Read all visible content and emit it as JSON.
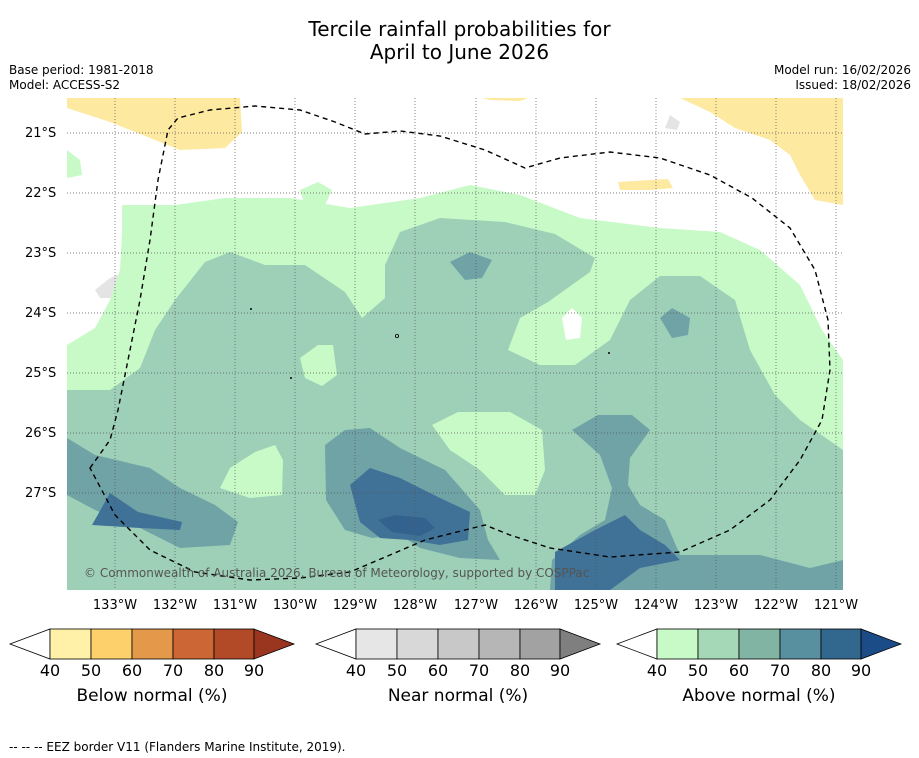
{
  "title_line1": "Tercile rainfall probabilities for",
  "title_line2": "April to June 2026",
  "base_period": "Base period: 1981-2018",
  "model": "Model: ACCESS-S2",
  "model_run": "Model run: 16/02/2026",
  "issued": "Issued: 18/02/2026",
  "lat_labels": [
    "21°S",
    "22°S",
    "23°S",
    "24°S",
    "25°S",
    "26°S",
    "27°S"
  ],
  "lon_labels": [
    "133°W",
    "132°W",
    "131°W",
    "130°W",
    "129°W",
    "128°W",
    "127°W",
    "126°W",
    "125°W",
    "124°W",
    "123°W",
    "122°W",
    "121°W"
  ],
  "copyright": "© Commonwealth of Australia 2026, Bureau of Meteorology, supported by COSPPac",
  "colorbars": [
    {
      "label": "Below normal (%)",
      "ticks": [
        "40",
        "50",
        "60",
        "70",
        "80",
        "90"
      ],
      "colors": [
        "#fff2a8",
        "#fdd06b",
        "#e3984a",
        "#cc6634",
        "#b24a28",
        "#9a3520"
      ]
    },
    {
      "label": "Near normal (%)",
      "ticks": [
        "40",
        "50",
        "60",
        "70",
        "80",
        "90"
      ],
      "colors": [
        "#e6e6e6",
        "#d8d8d8",
        "#c8c8c8",
        "#b6b6b6",
        "#a2a2a2",
        "#7f7f7f"
      ]
    },
    {
      "label": "Above normal (%)",
      "ticks": [
        "40",
        "50",
        "60",
        "70",
        "80",
        "90"
      ],
      "colors": [
        "#c8fac8",
        "#a4d8b6",
        "#82b4a4",
        "#5890a0",
        "#33688e",
        "#1c4c88"
      ]
    }
  ],
  "footer": "--  --  -- EEZ border V11 (Flanders Marine Institute, 2019)."
}
